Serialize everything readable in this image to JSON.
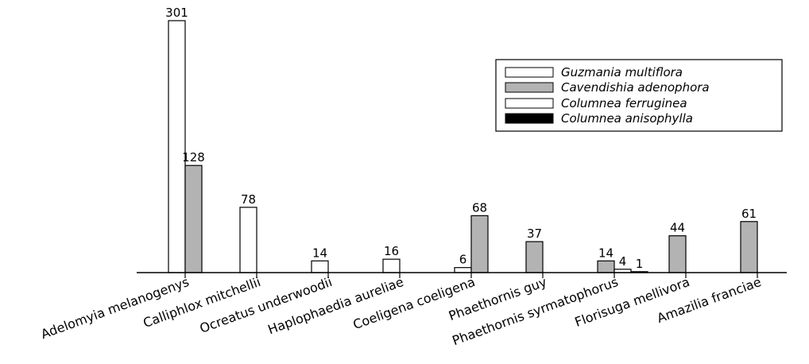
{
  "chart_data": {
    "type": "bar",
    "title": "",
    "xlabel": "",
    "ylabel": "",
    "ylim": [
      0,
      301
    ],
    "grid": false,
    "legend_position": "top-right",
    "categories": [
      "Adelomyia melanogenys",
      "Calliphlox mitchellii",
      "Ocreatus underwoodii",
      "Haplophaedia aureliae",
      "Coeligena coeligena",
      "Phaethornis guy",
      "Phaethornis syrmatophorus",
      "Florisuga mellivora",
      "Amazilia franciae"
    ],
    "series": [
      {
        "name": "Guzmania multiflora",
        "color": "#ffffff",
        "values": [
          301,
          78,
          14,
          16,
          6,
          null,
          null,
          null,
          null
        ]
      },
      {
        "name": "Cavendishia adenophora",
        "color": "#b3b3b3",
        "values": [
          128,
          null,
          null,
          null,
          68,
          37,
          14,
          44,
          61
        ]
      },
      {
        "name": "Columnea ferruginea",
        "color": "#ffffff",
        "values": [
          null,
          null,
          null,
          null,
          null,
          null,
          4,
          null,
          null
        ]
      },
      {
        "name": "Columnea anisophylla",
        "color": "#000000",
        "values": [
          null,
          null,
          null,
          null,
          null,
          null,
          1,
          null,
          null
        ]
      }
    ]
  }
}
